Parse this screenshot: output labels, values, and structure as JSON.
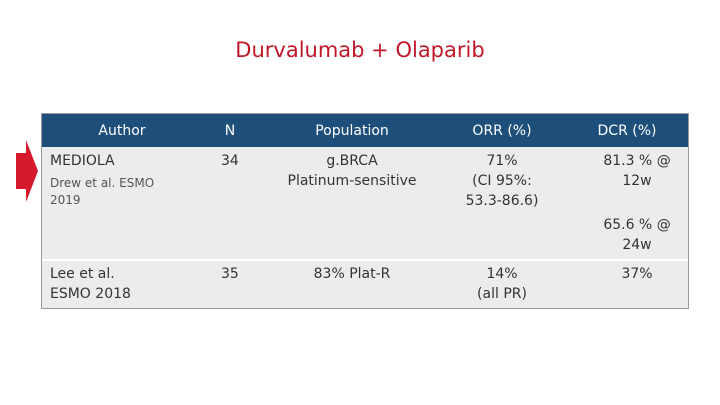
{
  "slide": {
    "title": "Durvalumab + Olaparib"
  },
  "table": {
    "headers": [
      "Author",
      "N",
      "Population",
      "ORR (%)",
      "DCR (%)"
    ],
    "rows": [
      {
        "author": "MEDIOLA",
        "author_sub_line1": "Drew et al. ESMO",
        "author_sub_line2": "2019",
        "n": "34",
        "population_line1": "g.BRCA",
        "population_line2": "Platinum-sensitive",
        "orr_line1": "71%",
        "orr_line2": "(CI 95%:",
        "orr_line3": "53.3-86.6)",
        "dcr_a_line1": "81.3 % @",
        "dcr_a_line2": "12w",
        "dcr_b_line1": "65.6 % @",
        "dcr_b_line2": "24w"
      },
      {
        "author_line1": "Lee et al.",
        "author_line2": "ESMO 2018",
        "n": "35",
        "population": "83% Plat-R",
        "orr_line1": "14%",
        "orr_line2": "(all PR)",
        "dcr": "37%"
      }
    ]
  },
  "colors": {
    "title": "#c0172b",
    "header_bg": "#1e4f7b",
    "row_bg": "#ececec",
    "arrow": "#d7192e"
  },
  "icons": {
    "row_marker": "right-arrow-icon"
  }
}
